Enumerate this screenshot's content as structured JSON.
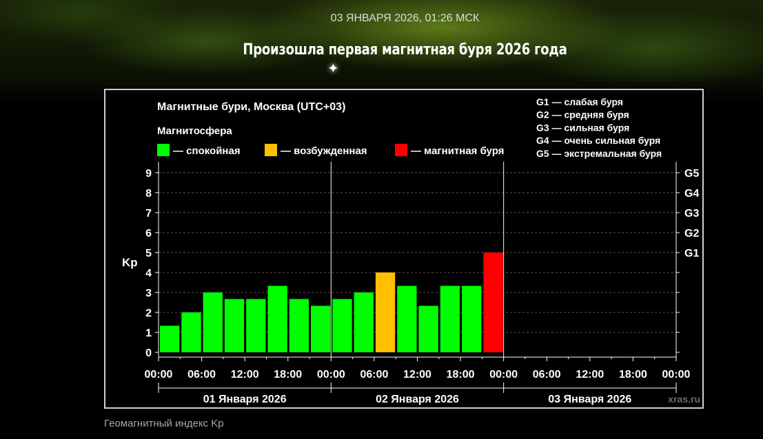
{
  "article": {
    "date_line": "03 ЯНВАРЯ 2026, 01:26 МСК",
    "headline": "Произошла первая магнитная буря 2026 года",
    "caption": "Геомагнитный индекс Kp"
  },
  "chart_data": {
    "type": "bar",
    "title": "Магнитные бури, Москва (UTC+03)",
    "legend_title": "Магнитосфера",
    "legend": [
      {
        "label": "— спокойная",
        "color": "#00ff00"
      },
      {
        "label": "— возбужденная",
        "color": "#ffc000"
      },
      {
        "label": "— магнитная буря",
        "color": "#ff0000"
      }
    ],
    "storm_scale": [
      "G1 — слабая буря",
      "G2 — средняя буря",
      "G3 — сильная буря",
      "G4 — очень сильная буря",
      "G5 — экстремальная буря"
    ],
    "ylabel": "Kp",
    "ylim": [
      0,
      9
    ],
    "y_ticks": [
      "0",
      "1",
      "2",
      "3",
      "4",
      "5",
      "6",
      "7",
      "8",
      "9"
    ],
    "right_ticks": [
      {
        "value": 5,
        "label": "G1"
      },
      {
        "value": 6,
        "label": "G2"
      },
      {
        "value": 7,
        "label": "G3"
      },
      {
        "value": 8,
        "label": "G4"
      },
      {
        "value": 9,
        "label": "G5"
      }
    ],
    "x_hour_range": [
      0,
      72
    ],
    "x_ticks": [
      "00:00",
      "06:00",
      "12:00",
      "18:00",
      "00:00",
      "06:00",
      "12:00",
      "18:00",
      "00:00",
      "06:00",
      "12:00",
      "18:00",
      "00:00"
    ],
    "days": [
      "01 Января 2026",
      "02 Января 2026",
      "03 Января 2026"
    ],
    "bars": [
      {
        "start_hour": 0,
        "value": 1.33,
        "level": "calm"
      },
      {
        "start_hour": 3,
        "value": 2.0,
        "level": "calm"
      },
      {
        "start_hour": 6,
        "value": 3.0,
        "level": "calm"
      },
      {
        "start_hour": 9,
        "value": 2.67,
        "level": "calm"
      },
      {
        "start_hour": 12,
        "value": 2.67,
        "level": "calm"
      },
      {
        "start_hour": 15,
        "value": 3.33,
        "level": "calm"
      },
      {
        "start_hour": 18,
        "value": 2.67,
        "level": "calm"
      },
      {
        "start_hour": 21,
        "value": 2.33,
        "level": "calm"
      },
      {
        "start_hour": 24,
        "value": 2.67,
        "level": "calm"
      },
      {
        "start_hour": 27,
        "value": 3.0,
        "level": "calm"
      },
      {
        "start_hour": 30,
        "value": 4.0,
        "level": "excited"
      },
      {
        "start_hour": 33,
        "value": 3.33,
        "level": "calm"
      },
      {
        "start_hour": 36,
        "value": 2.33,
        "level": "calm"
      },
      {
        "start_hour": 39,
        "value": 3.33,
        "level": "calm"
      },
      {
        "start_hour": 42,
        "value": 3.33,
        "level": "calm"
      },
      {
        "start_hour": 45,
        "value": 5.0,
        "level": "storm"
      }
    ],
    "level_colors": {
      "calm": "#00ff00",
      "excited": "#ffc000",
      "storm": "#ff0000"
    },
    "grid": true,
    "watermark": "xras.ru"
  }
}
